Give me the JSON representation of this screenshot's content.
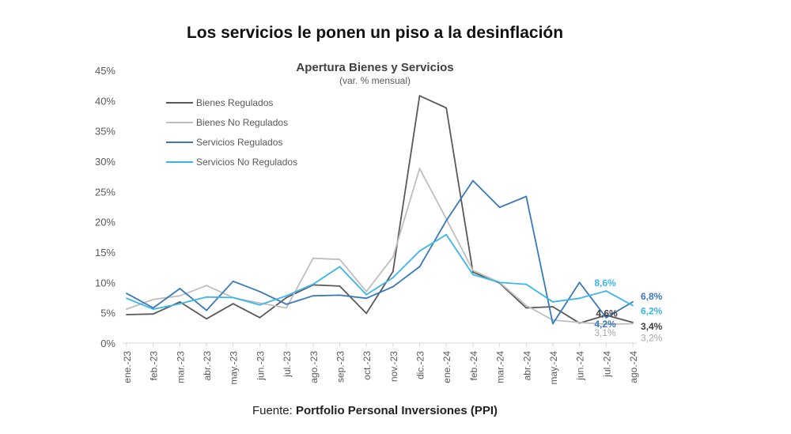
{
  "page": {
    "title": "Los servicios le ponen un piso a la desinflación",
    "source_prefix": "Fuente: ",
    "source_name": "Portfolio Personal Inversiones (PPI)"
  },
  "chart_data": {
    "type": "line",
    "title": "Apertura Bienes y Servicios",
    "subtitle": "(var. % mensual)",
    "categories": [
      "ene.-23",
      "feb.-23",
      "mar.-23",
      "abr.-23",
      "may.-23",
      "jun.-23",
      "jul.-23",
      "ago.-23",
      "sep.-23",
      "oct.-23",
      "nov.-23",
      "dic.-23",
      "ene.-24",
      "feb.-24",
      "mar.-24",
      "abr.-24",
      "may.-24",
      "jun.-24",
      "jul.-24",
      "ago.-24"
    ],
    "ylim": [
      0,
      45
    ],
    "yticks": [
      0,
      5,
      10,
      15,
      20,
      25,
      30,
      35,
      40,
      45
    ],
    "ytick_labels": [
      "0%",
      "5%",
      "10%",
      "15%",
      "20%",
      "25%",
      "30%",
      "35%",
      "40%",
      "45%"
    ],
    "grid": false,
    "legend_position": "top-left",
    "series": [
      {
        "name": "Bienes Regulados",
        "color": "#595959",
        "values": [
          4.7,
          4.8,
          6.8,
          4.0,
          6.5,
          4.2,
          7.5,
          9.6,
          9.4,
          4.9,
          11.8,
          40.8,
          38.8,
          11.7,
          9.9,
          5.8,
          6.0,
          3.3,
          4.6,
          3.4
        ]
      },
      {
        "name": "Bienes No Regulados",
        "color": "#bfbfbf",
        "values": [
          5.6,
          7.2,
          7.8,
          9.5,
          7.5,
          6.6,
          5.8,
          14.0,
          13.8,
          8.5,
          14.2,
          28.8,
          20.5,
          12.0,
          10.0,
          6.2,
          3.8,
          3.4,
          3.1,
          3.2
        ]
      },
      {
        "name": "Servicios Regulados",
        "color": "#3a78b8",
        "values": [
          8.2,
          5.8,
          9.0,
          5.4,
          10.2,
          8.5,
          6.4,
          7.8,
          7.9,
          7.4,
          9.3,
          12.6,
          20.2,
          26.8,
          22.4,
          24.2,
          3.2,
          10.0,
          4.2,
          6.8
        ]
      },
      {
        "name": "Servicios No Regulados",
        "color": "#3bb5ea",
        "values": [
          7.4,
          5.6,
          6.5,
          7.6,
          7.5,
          6.3,
          7.8,
          9.7,
          12.6,
          8.0,
          10.8,
          15.2,
          17.9,
          11.3,
          10.0,
          9.7,
          6.8,
          7.4,
          8.6,
          6.2
        ]
      }
    ],
    "annotations": [
      {
        "text": "8,6%",
        "series": 3,
        "index": 18,
        "color": "#3bb5ea",
        "bold": true
      },
      {
        "text": "4,6%",
        "series": 0,
        "index": 18,
        "color": "#404040",
        "bold": true
      },
      {
        "text": "4,2%",
        "series": 2,
        "index": 18,
        "color": "#3a78b8",
        "bold": true
      },
      {
        "text": "3,1%",
        "series": 1,
        "index": 18,
        "color": "#a6a6a6",
        "bold": false
      },
      {
        "text": "6,8%",
        "series": 2,
        "index": 19,
        "color": "#3a78b8",
        "bold": true
      },
      {
        "text": "6,2%",
        "series": 3,
        "index": 19,
        "color": "#3bb5ea",
        "bold": true
      },
      {
        "text": "3,4%",
        "series": 0,
        "index": 19,
        "color": "#404040",
        "bold": true
      },
      {
        "text": "3,2%",
        "series": 1,
        "index": 19,
        "color": "#a6a6a6",
        "bold": false
      }
    ]
  }
}
